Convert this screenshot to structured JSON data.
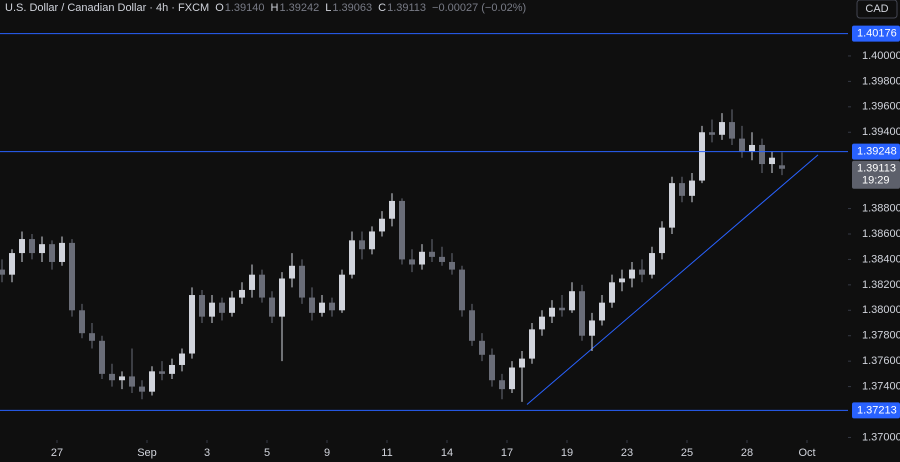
{
  "chart_data": {
    "type": "candlestick",
    "title": "U.S. Dollar / Canadian Dollar · 4h · FXCM",
    "ohlc_header": [
      {
        "key": "O",
        "text": "1.39140"
      },
      {
        "key": "H",
        "text": "1.39242"
      },
      {
        "key": "L",
        "text": "1.39063"
      },
      {
        "key": "C",
        "text": "1.39113"
      }
    ],
    "change": "−0.00027 (−0.02%)",
    "currency": "CAD",
    "up_color": "#d1d4dc",
    "down_color": "#6a6d78",
    "line_color": "#2962ff",
    "open": [
      1.3832,
      1.3828,
      1.3845,
      1.3856,
      1.3845,
      1.3852,
      1.3838,
      1.3853,
      1.38,
      1.3782,
      1.3776,
      1.375,
      1.3745,
      1.3748,
      1.374,
      1.3736,
      1.3752,
      1.375,
      1.3757,
      1.3766,
      1.3812,
      1.3795,
      1.3806,
      1.3798,
      1.381,
      1.3816,
      1.3828,
      1.381,
      1.3795,
      1.3825,
      1.3835,
      1.381,
      1.3798,
      1.3806,
      1.38,
      1.3828,
      1.3855,
      1.3848,
      1.3862,
      1.3872,
      1.3886,
      1.384,
      1.3836,
      1.3846,
      1.3842,
      1.3838,
      1.3832,
      1.38,
      1.3776,
      1.3765,
      1.3745,
      1.3738,
      1.3755,
      1.3762,
      1.3785,
      1.3795,
      1.3802,
      1.38,
      1.3815,
      1.378,
      1.3792,
      1.3806,
      1.3822,
      1.3825,
      1.3832,
      1.3828,
      1.3845,
      1.3865,
      1.39,
      1.389,
      1.3902,
      1.394,
      1.3938,
      1.3948,
      1.3935,
      1.3925,
      1.393,
      1.3915,
      1.3914
    ],
    "high": [
      1.384,
      1.3848,
      1.3862,
      1.386,
      1.3858,
      1.3855,
      1.3858,
      1.3856,
      1.3805,
      1.379,
      1.378,
      1.3758,
      1.3752,
      1.377,
      1.3745,
      1.3756,
      1.376,
      1.3762,
      1.377,
      1.3818,
      1.3816,
      1.3812,
      1.381,
      1.3815,
      1.3822,
      1.3836,
      1.3832,
      1.3815,
      1.383,
      1.3845,
      1.384,
      1.3818,
      1.3812,
      1.381,
      1.3832,
      1.3862,
      1.3862,
      1.3866,
      1.3878,
      1.3892,
      1.3888,
      1.3848,
      1.3852,
      1.3856,
      1.385,
      1.3845,
      1.3835,
      1.3805,
      1.3782,
      1.377,
      1.375,
      1.376,
      1.3768,
      1.379,
      1.38,
      1.3808,
      1.3812,
      1.3822,
      1.382,
      1.3798,
      1.3812,
      1.3828,
      1.3832,
      1.3838,
      1.384,
      1.385,
      1.387,
      1.3905,
      1.3905,
      1.3908,
      1.3945,
      1.395,
      1.3955,
      1.3958,
      1.3945,
      1.394,
      1.3935,
      1.3925,
      1.39242
    ],
    "low": [
      1.3822,
      1.3822,
      1.3838,
      1.384,
      1.3838,
      1.3832,
      1.3835,
      1.3795,
      1.3778,
      1.377,
      1.3746,
      1.374,
      1.3738,
      1.3735,
      1.373,
      1.3733,
      1.3745,
      1.3746,
      1.3752,
      1.3762,
      1.379,
      1.379,
      1.3792,
      1.3795,
      1.3805,
      1.381,
      1.3806,
      1.379,
      1.376,
      1.3818,
      1.3805,
      1.3792,
      1.3795,
      1.3795,
      1.3798,
      1.3825,
      1.384,
      1.3844,
      1.3858,
      1.3866,
      1.3836,
      1.383,
      1.3832,
      1.3838,
      1.3835,
      1.3828,
      1.3795,
      1.3772,
      1.376,
      1.374,
      1.373,
      1.3735,
      1.3728,
      1.3758,
      1.378,
      1.379,
      1.3795,
      1.3798,
      1.3776,
      1.3768,
      1.3788,
      1.3802,
      1.3815,
      1.3818,
      1.3822,
      1.3825,
      1.384,
      1.386,
      1.3885,
      1.3885,
      1.39,
      1.3932,
      1.3934,
      1.393,
      1.392,
      1.3918,
      1.3908,
      1.3908,
      1.39063
    ],
    "close": [
      1.3828,
      1.3845,
      1.3856,
      1.3845,
      1.3852,
      1.3838,
      1.3853,
      1.38,
      1.3782,
      1.3776,
      1.375,
      1.3745,
      1.3748,
      1.374,
      1.3736,
      1.3752,
      1.375,
      1.3757,
      1.3766,
      1.3812,
      1.3795,
      1.3806,
      1.3798,
      1.381,
      1.3816,
      1.3828,
      1.381,
      1.3795,
      1.3825,
      1.3835,
      1.381,
      1.3798,
      1.3806,
      1.38,
      1.3828,
      1.3855,
      1.3848,
      1.3862,
      1.3872,
      1.3886,
      1.384,
      1.3836,
      1.3846,
      1.3842,
      1.3838,
      1.3832,
      1.38,
      1.3776,
      1.3765,
      1.3745,
      1.3738,
      1.3755,
      1.3762,
      1.3785,
      1.3795,
      1.3802,
      1.38,
      1.3815,
      1.378,
      1.3792,
      1.3806,
      1.3822,
      1.3825,
      1.3832,
      1.3828,
      1.3845,
      1.3865,
      1.39,
      1.389,
      1.3902,
      1.394,
      1.3938,
      1.3948,
      1.3935,
      1.3925,
      1.393,
      1.3915,
      1.392,
      1.39113
    ],
    "xlim": [
      0.3,
      85.1
    ],
    "xticks": [
      {
        "value": 6,
        "label": "27"
      },
      {
        "value": 15,
        "label": "Sep"
      },
      {
        "value": 21,
        "label": "3"
      },
      {
        "value": 27,
        "label": "5"
      },
      {
        "value": 33,
        "label": "9"
      },
      {
        "value": 39,
        "label": "11"
      },
      {
        "value": 45,
        "label": "14"
      },
      {
        "value": 51,
        "label": "17"
      },
      {
        "value": 57,
        "label": "19"
      },
      {
        "value": 63,
        "label": "23"
      },
      {
        "value": 69,
        "label": "25"
      },
      {
        "value": 75,
        "label": "28"
      },
      {
        "value": 81,
        "label": "Oct"
      }
    ],
    "ylim": [
      1.3698,
      1.4044
    ],
    "yticks": [
      {
        "value": 1.37,
        "label": "1.37000"
      },
      {
        "value": 1.374,
        "label": "1.37400"
      },
      {
        "value": 1.376,
        "label": "1.37600"
      },
      {
        "value": 1.378,
        "label": "1.37800"
      },
      {
        "value": 1.38,
        "label": "1.38000"
      },
      {
        "value": 1.382,
        "label": "1.38200"
      },
      {
        "value": 1.384,
        "label": "1.38400"
      },
      {
        "value": 1.386,
        "label": "1.38600"
      },
      {
        "value": 1.388,
        "label": "1.38800"
      },
      {
        "value": 1.394,
        "label": "1.39400"
      },
      {
        "value": 1.396,
        "label": "1.39600"
      },
      {
        "value": 1.398,
        "label": "1.39800"
      },
      {
        "value": 1.4,
        "label": "1.40000"
      }
    ],
    "levels": [
      1.40176,
      1.39248,
      1.37213
    ],
    "trendline": {
      "x": [
        53,
        82.1
      ],
      "y": [
        1.37259,
        1.39222
      ]
    },
    "last_price": 1.39113,
    "countdown": "19:29"
  }
}
